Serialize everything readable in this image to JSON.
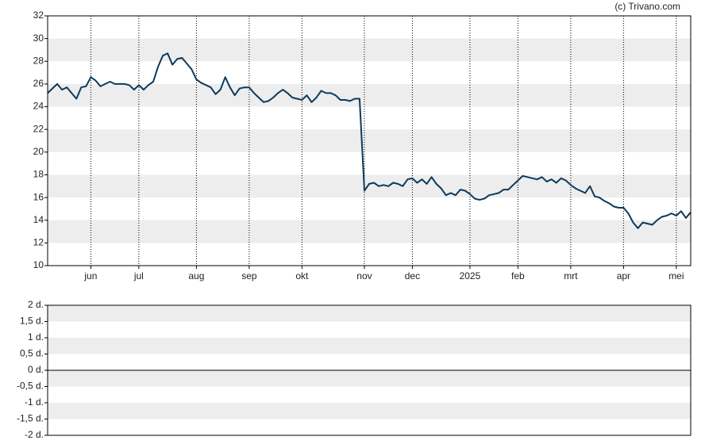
{
  "credit": "(c) Trivano.com",
  "chart_data": [
    {
      "type": "line",
      "categories": [
        null,
        null,
        null,
        null,
        null,
        null,
        null,
        null,
        null,
        "jun",
        null,
        null,
        null,
        null,
        null,
        null,
        null,
        null,
        null,
        "jul",
        null,
        null,
        null,
        null,
        null,
        null,
        null,
        null,
        null,
        null,
        null,
        "aug",
        null,
        null,
        null,
        null,
        null,
        null,
        null,
        null,
        null,
        null,
        "sep",
        null,
        null,
        null,
        null,
        null,
        null,
        null,
        null,
        null,
        null,
        "okt",
        null,
        null,
        null,
        null,
        null,
        null,
        null,
        null,
        null,
        null,
        null,
        null,
        "nov",
        null,
        null,
        null,
        null,
        null,
        null,
        null,
        null,
        null,
        "dec",
        null,
        null,
        null,
        null,
        null,
        null,
        null,
        null,
        null,
        null,
        null,
        "2025",
        null,
        null,
        null,
        null,
        null,
        null,
        null,
        null,
        null,
        "feb",
        null,
        null,
        null,
        null,
        null,
        null,
        null,
        null,
        null,
        null,
        "mrt",
        null,
        null,
        null,
        null,
        null,
        null,
        null,
        null,
        null,
        null,
        "apr",
        null,
        null,
        null,
        null,
        null,
        null,
        null,
        null,
        null,
        null,
        "mei",
        null,
        null,
        null
      ],
      "series": [
        {
          "color": "#0d3a5c",
          "values": [
            25.2,
            25.6,
            26.0,
            25.5,
            25.7,
            25.2,
            24.7,
            25.7,
            25.8,
            26.6,
            26.3,
            25.8,
            26.0,
            26.2,
            26.0,
            26.0,
            26.0,
            25.9,
            25.5,
            25.9,
            25.5,
            25.9,
            26.2,
            27.5,
            28.5,
            28.7,
            27.7,
            28.2,
            28.3,
            27.8,
            27.3,
            26.4,
            26.1,
            25.9,
            25.7,
            25.1,
            25.5,
            26.6,
            25.7,
            25.0,
            25.6,
            25.7,
            25.7,
            25.2,
            24.8,
            24.4,
            24.5,
            24.8,
            25.2,
            25.5,
            25.2,
            24.8,
            24.7,
            24.6,
            25.0,
            24.4,
            24.8,
            25.4,
            25.2,
            25.2,
            25.0,
            24.6,
            24.6,
            24.5,
            24.7,
            24.7,
            16.6,
            17.2,
            17.3,
            17.0,
            17.1,
            17.0,
            17.3,
            17.2,
            17.0,
            17.6,
            17.7,
            17.3,
            17.6,
            17.2,
            17.8,
            17.2,
            16.8,
            16.2,
            16.4,
            16.2,
            16.7,
            16.6,
            16.3,
            15.9,
            15.8,
            15.9,
            16.2,
            16.3,
            16.4,
            16.7,
            16.7,
            17.1,
            17.5,
            17.9,
            17.8,
            17.7,
            17.6,
            17.8,
            17.4,
            17.6,
            17.3,
            17.7,
            17.5,
            17.1,
            16.8,
            16.6,
            16.4,
            17.0,
            16.1,
            16.0,
            15.7,
            15.5,
            15.2,
            15.1,
            15.1,
            14.6,
            13.8,
            13.3,
            13.8,
            13.7,
            13.6,
            14.0,
            14.3,
            14.4,
            14.6,
            14.4,
            14.8,
            14.2,
            14.7
          ]
        }
      ],
      "ylim": [
        10,
        32
      ],
      "yticks": [
        10,
        12,
        14,
        16,
        18,
        20,
        22,
        24,
        26,
        28,
        30,
        32
      ],
      "grid": true
    },
    {
      "type": "line",
      "series": [],
      "ylim": [
        -2,
        2
      ],
      "yticks": [
        {
          "value": -2,
          "label": "-2 d."
        },
        {
          "value": -1.5,
          "label": "-1,5 d."
        },
        {
          "value": -1,
          "label": "-1 d."
        },
        {
          "value": -0.5,
          "label": "-0,5 d."
        },
        {
          "value": 0,
          "label": "0 d."
        },
        {
          "value": 0.5,
          "label": "0,5 d."
        },
        {
          "value": 1,
          "label": "1 d."
        },
        {
          "value": 1.5,
          "label": "1,5 d."
        },
        {
          "value": 2,
          "label": "2 d."
        }
      ],
      "grid": true
    }
  ]
}
